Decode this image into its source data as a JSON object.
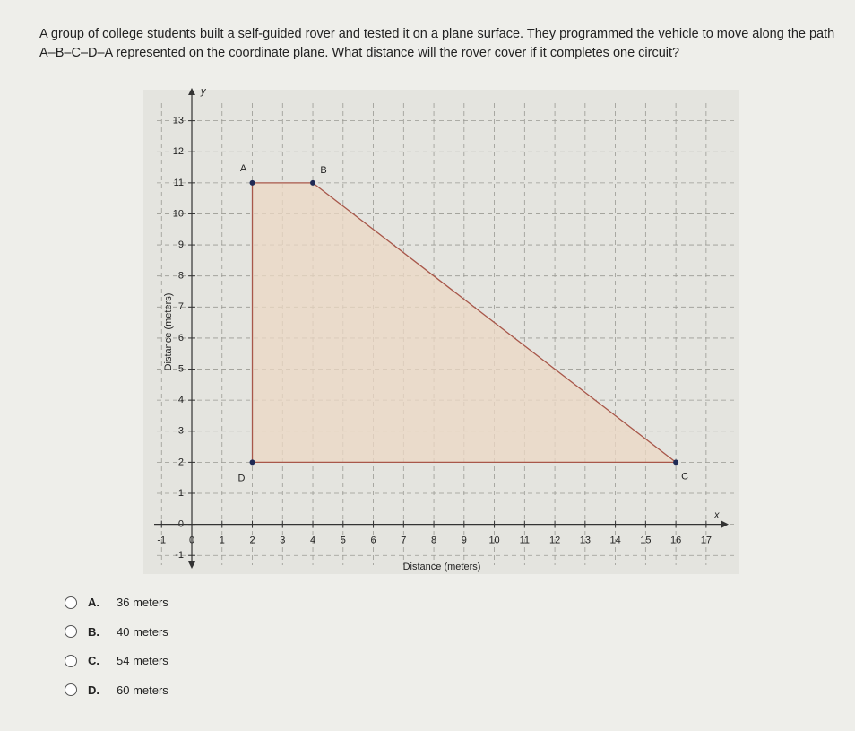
{
  "question": "A group of college students built a self-guided rover and tested it on a plane surface. They programmed the vehicle to move along the path A–B–C–D–A represented on the coordinate plane. What distance will the rover cover if it completes one circuit?",
  "chart_data": {
    "type": "polygon",
    "x": [
      2,
      4,
      16,
      2
    ],
    "y": [
      11,
      11,
      2,
      2
    ],
    "point_labels": [
      "A",
      "B",
      "C",
      "D"
    ],
    "color": "#a8574a",
    "fill": "#ecd8c4",
    "marker_color": "#1f2a55",
    "x_label": "Distance (meters)",
    "y_label": "Distance (meters)",
    "x_axis_name": "x",
    "y_axis_name": "y",
    "xlim": [
      -1.6,
      18.1
    ],
    "ylim": [
      -1.6,
      14
    ],
    "xticks": [
      -1,
      0,
      1,
      2,
      3,
      4,
      5,
      6,
      7,
      8,
      9,
      10,
      11,
      12,
      13,
      14,
      15,
      16,
      17
    ],
    "yticks": [
      -1,
      0,
      1,
      2,
      3,
      4,
      5,
      6,
      7,
      8,
      9,
      10,
      11,
      12,
      13
    ],
    "grid": true
  },
  "options": [
    {
      "letter": "A.",
      "text": "36 meters"
    },
    {
      "letter": "B.",
      "text": "40 meters"
    },
    {
      "letter": "C.",
      "text": "54 meters"
    },
    {
      "letter": "D.",
      "text": "60 meters"
    }
  ]
}
